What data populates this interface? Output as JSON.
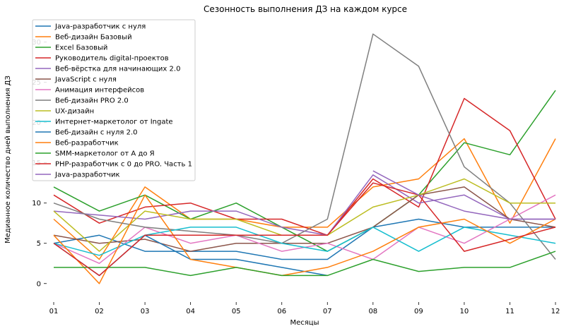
{
  "chart_data": {
    "type": "line",
    "title": "Сезонность выполнения ДЗ на каждом курсе",
    "xlabel": "Месяцы",
    "ylabel": "Медианное количество дней выполнения ДЗ",
    "categories": [
      "01",
      "02",
      "03",
      "04",
      "05",
      "06",
      "07",
      "08",
      "09",
      "10",
      "11",
      "12"
    ],
    "ylim": [
      -1.6,
      32.6
    ],
    "yticks": [
      0,
      5,
      10,
      15,
      20,
      25,
      30
    ],
    "ytick_labels": [
      "0",
      "5",
      "10",
      "15",
      "20",
      "25",
      "30"
    ],
    "grid": false,
    "legend_position": "upper-left",
    "series": [
      {
        "name": "Java-разработчик с нуля",
        "color": "#1f77b4",
        "values": [
          5,
          6,
          4,
          4,
          4,
          3,
          3,
          7,
          8,
          7,
          7,
          7
        ]
      },
      {
        "name": "Веб-дизайн Базовый",
        "color": "#ff7f0e",
        "values": [
          8,
          3,
          12,
          8,
          8,
          7,
          7,
          12,
          13,
          18,
          7.5,
          18
        ]
      },
      {
        "name": "Excel Базовый",
        "color": "#2ca02c",
        "values": [
          12,
          9,
          11,
          8,
          10,
          7,
          4,
          7,
          11,
          17.5,
          16,
          24
        ]
      },
      {
        "name": "Руководитель digital-проектов",
        "color": "#d62728",
        "values": [
          11,
          7.5,
          9.5,
          10,
          8,
          8,
          6,
          13,
          9.5,
          23,
          19,
          8
        ]
      },
      {
        "name": "Веб-вёрстка для начинающих 2.0",
        "color": "#9467bd",
        "values": [
          9,
          8.5,
          8,
          9,
          9,
          7,
          6,
          13.5,
          10,
          11,
          8,
          8
        ]
      },
      {
        "name": "JavaScript с нуля",
        "color": "#8c564b",
        "values": [
          6,
          5,
          5.5,
          4,
          5,
          5,
          5,
          7,
          11,
          12,
          8,
          7
        ]
      },
      {
        "name": "Анимация интерфейсов",
        "color": "#e377c2",
        "values": [
          5,
          2.5,
          7,
          5,
          6,
          4,
          5,
          3,
          7,
          5,
          8,
          11
        ]
      },
      {
        "name": "Веб-дизайн PRO 2.0",
        "color": "#7f7f7f",
        "values": [
          10,
          8,
          7,
          6.5,
          6,
          5,
          8,
          31,
          27,
          14.5,
          10,
          3
        ]
      },
      {
        "name": "UX-дизайн",
        "color": "#bcbd22",
        "values": [
          9,
          4,
          9,
          8,
          8,
          6,
          6,
          9.5,
          11,
          13,
          10,
          10
        ]
      },
      {
        "name": "Интернет-маркетолог от Ingate",
        "color": "#17becf",
        "values": [
          5,
          3.5,
          6,
          7,
          7,
          5,
          4,
          7,
          4,
          7,
          6,
          5
        ]
      },
      {
        "name": "Веб-дизайн с нуля 2.0",
        "color": "#1f77b4",
        "values": [
          5,
          1,
          6,
          3,
          3,
          2,
          1,
          null,
          null,
          null,
          null,
          null
        ]
      },
      {
        "name": "Веб-разработчик",
        "color": "#ff7f0e",
        "values": [
          6,
          0,
          11,
          3,
          2,
          1,
          2,
          4,
          7,
          8,
          5,
          8
        ]
      },
      {
        "name": "SMM-маркетолог от А до Я",
        "color": "#2ca02c",
        "values": [
          2,
          2,
          2,
          1,
          2,
          1,
          1,
          3,
          1.5,
          2,
          2,
          4
        ]
      },
      {
        "name": "PHP-разработчик с 0 до PRO. Часть 1",
        "color": "#d62728",
        "values": [
          5,
          1,
          6,
          6,
          6,
          6,
          6,
          12.5,
          11,
          4,
          5.5,
          7
        ]
      },
      {
        "name": "Java-разработчик",
        "color": "#9467bd",
        "values": [
          null,
          null,
          null,
          null,
          null,
          null,
          null,
          14,
          11,
          9,
          8,
          8
        ]
      }
    ]
  }
}
